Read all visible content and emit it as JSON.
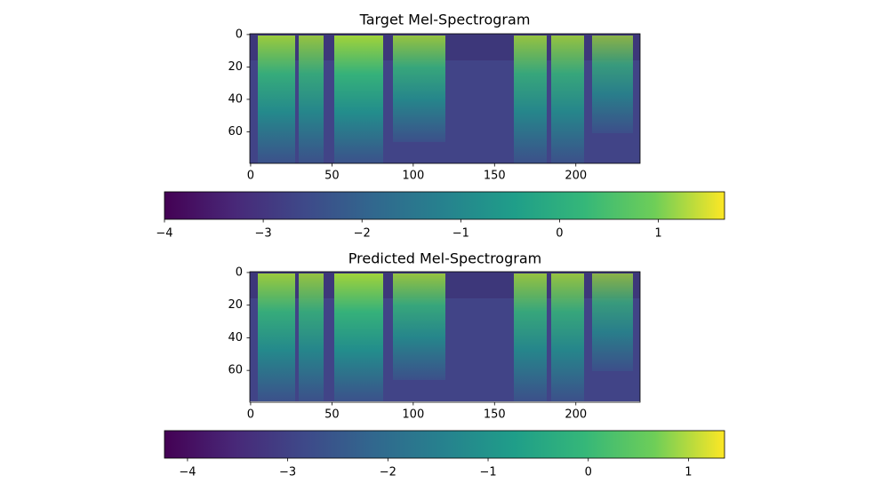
{
  "chart_data": [
    {
      "type": "heatmap",
      "title": "Target Mel-Spectrogram",
      "colormap": "viridis",
      "xlim": [
        -0.5,
        239.5
      ],
      "xticks": [
        0,
        50,
        100,
        150,
        200
      ],
      "ylim": [
        79.5,
        -0.5
      ],
      "yticks": [
        0,
        20,
        40,
        60
      ],
      "colorbar": {
        "clim": [
          -4,
          1.67
        ],
        "ticks": [
          {
            "value": -4,
            "label": "−4"
          },
          {
            "value": -3,
            "label": "−3"
          },
          {
            "value": -2,
            "label": "−2"
          },
          {
            "value": -1,
            "label": "−1"
          },
          0,
          1
        ]
      }
    },
    {
      "type": "heatmap",
      "title": "Predicted Mel-Spectrogram",
      "colormap": "viridis",
      "xlim": [
        -0.5,
        239.5
      ],
      "xticks": [
        0,
        50,
        100,
        150,
        200
      ],
      "ylim": [
        79.5,
        -0.5
      ],
      "yticks": [
        0,
        20,
        40,
        60
      ],
      "colorbar": {
        "clim": [
          -4.23,
          1.36
        ],
        "ticks": [
          {
            "value": -4,
            "label": "−4"
          },
          {
            "value": -3,
            "label": "−3"
          },
          {
            "value": -2,
            "label": "−2"
          },
          {
            "value": -1,
            "label": "−1"
          },
          0,
          1
        ]
      }
    }
  ]
}
